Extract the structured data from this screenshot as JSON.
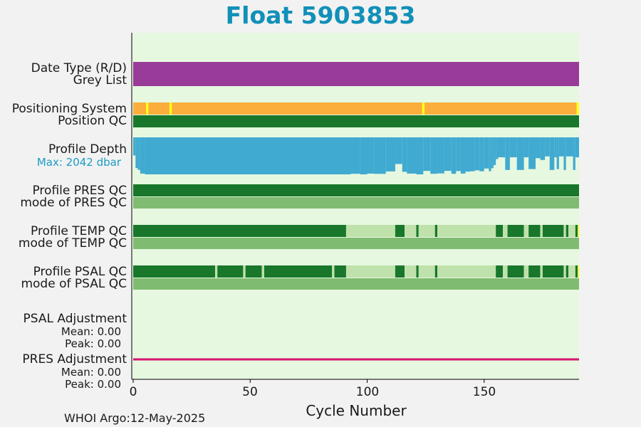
{
  "title": "Float 5903853",
  "footer": "WHOI Argo:12-May-2025",
  "colors": {
    "plot_bg": "#e6f8df",
    "purple": "#993b98",
    "orange": "#fbae3c",
    "yellow": "#ffff1a",
    "dark_green": "#18772a",
    "mid_green": "#7fbb70",
    "light_green": "#bfe1ac",
    "blue": "#40aad1",
    "magenta": "#d6156f"
  },
  "labels": {
    "date_type": "Date Type (R/D)",
    "grey_list": "Grey List",
    "positioning_system": "Positioning System",
    "position_qc": "Position QC",
    "profile_depth": "Profile Depth",
    "max_depth": "Max: 2042 dbar",
    "profile_pres_qc": "Profile PRES QC",
    "mode_pres_qc": "mode of PRES QC",
    "profile_temp_qc": "Profile TEMP QC",
    "mode_temp_qc": "mode of TEMP QC",
    "profile_psal_qc": "Profile PSAL QC",
    "mode_psal_qc": "mode of PSAL QC",
    "psal_adjustment": "PSAL Adjustment",
    "psal_mean": "Mean: 0.00",
    "psal_peak": "Peak: 0.00",
    "pres_adjustment": "PRES Adjustment",
    "pres_mean": "Mean: 0.00",
    "pres_peak": "Peak: 0.00"
  },
  "chart_data": {
    "type": "bar",
    "xlabel": "Cycle Number",
    "xlim": [
      -0.5,
      191
    ],
    "xticks": [
      0,
      50,
      100,
      150
    ],
    "tick_labels": [
      "0",
      "50",
      "100",
      "150"
    ],
    "rows": {
      "date_type": [
        {
          "from": 0,
          "to": 191,
          "color": "purple"
        }
      ],
      "positioning_system": [
        {
          "from": 0,
          "to": 191,
          "color": "orange"
        },
        {
          "from": 5.5,
          "to": 6.5,
          "color": "yellow"
        },
        {
          "from": 15.5,
          "to": 16.5,
          "color": "yellow"
        },
        {
          "from": 123.5,
          "to": 124.5,
          "color": "yellow"
        },
        {
          "from": 189.5,
          "to": 191,
          "color": "yellow"
        }
      ],
      "position_qc": [
        {
          "from": 0,
          "to": 191,
          "color": "dark_green"
        }
      ],
      "profile_pres_qc": [
        {
          "from": 0,
          "to": 191,
          "color": "dark_green"
        }
      ],
      "mode_pres_qc": [
        {
          "from": 0,
          "to": 191,
          "color": "mid_green"
        }
      ],
      "profile_temp_qc": [
        {
          "from": 0,
          "to": 91,
          "color": "dark_green"
        },
        {
          "from": 91,
          "to": 112,
          "color": "light_green"
        },
        {
          "from": 112,
          "to": 116,
          "color": "dark_green"
        },
        {
          "from": 116,
          "to": 121,
          "color": "light_green"
        },
        {
          "from": 121,
          "to": 122,
          "color": "dark_green"
        },
        {
          "from": 122,
          "to": 129,
          "color": "light_green"
        },
        {
          "from": 129,
          "to": 130,
          "color": "dark_green"
        },
        {
          "from": 130,
          "to": 155,
          "color": "light_green"
        },
        {
          "from": 155,
          "to": 158,
          "color": "dark_green"
        },
        {
          "from": 158,
          "to": 160,
          "color": "light_green"
        },
        {
          "from": 160,
          "to": 167,
          "color": "dark_green"
        },
        {
          "from": 167,
          "to": 169,
          "color": "light_green"
        },
        {
          "from": 169,
          "to": 174,
          "color": "dark_green"
        },
        {
          "from": 174,
          "to": 175,
          "color": "light_green"
        },
        {
          "from": 175,
          "to": 184,
          "color": "dark_green"
        },
        {
          "from": 184,
          "to": 185,
          "color": "light_green"
        },
        {
          "from": 185,
          "to": 186,
          "color": "dark_green"
        },
        {
          "from": 186,
          "to": 189,
          "color": "light_green"
        },
        {
          "from": 189,
          "to": 190,
          "color": "dark_green"
        },
        {
          "from": 190,
          "to": 191,
          "color": "yellow"
        }
      ],
      "mode_temp_qc": [
        {
          "from": 0,
          "to": 191,
          "color": "mid_green"
        }
      ],
      "profile_psal_qc": [
        {
          "from": 0,
          "to": 35,
          "color": "dark_green"
        },
        {
          "from": 35,
          "to": 36,
          "color": "light_green"
        },
        {
          "from": 36,
          "to": 47,
          "color": "dark_green"
        },
        {
          "from": 47,
          "to": 48,
          "color": "light_green"
        },
        {
          "from": 48,
          "to": 55,
          "color": "dark_green"
        },
        {
          "from": 55,
          "to": 56,
          "color": "light_green"
        },
        {
          "from": 56,
          "to": 85,
          "color": "dark_green"
        },
        {
          "from": 85,
          "to": 86,
          "color": "light_green"
        },
        {
          "from": 86,
          "to": 91,
          "color": "dark_green"
        },
        {
          "from": 91,
          "to": 112,
          "color": "light_green"
        },
        {
          "from": 112,
          "to": 116,
          "color": "dark_green"
        },
        {
          "from": 116,
          "to": 121,
          "color": "light_green"
        },
        {
          "from": 121,
          "to": 122,
          "color": "dark_green"
        },
        {
          "from": 122,
          "to": 129,
          "color": "light_green"
        },
        {
          "from": 129,
          "to": 130,
          "color": "dark_green"
        },
        {
          "from": 130,
          "to": 155,
          "color": "light_green"
        },
        {
          "from": 155,
          "to": 158,
          "color": "dark_green"
        },
        {
          "from": 158,
          "to": 160,
          "color": "light_green"
        },
        {
          "from": 160,
          "to": 167,
          "color": "dark_green"
        },
        {
          "from": 167,
          "to": 169,
          "color": "light_green"
        },
        {
          "from": 169,
          "to": 174,
          "color": "dark_green"
        },
        {
          "from": 174,
          "to": 175,
          "color": "light_green"
        },
        {
          "from": 175,
          "to": 184,
          "color": "dark_green"
        },
        {
          "from": 184,
          "to": 185,
          "color": "light_green"
        },
        {
          "from": 185,
          "to": 186,
          "color": "dark_green"
        },
        {
          "from": 186,
          "to": 189,
          "color": "light_green"
        },
        {
          "from": 189,
          "to": 190,
          "color": "dark_green"
        },
        {
          "from": 190,
          "to": 191,
          "color": "yellow"
        }
      ],
      "mode_psal_qc": [
        {
          "from": 0,
          "to": 191,
          "color": "mid_green"
        }
      ],
      "pres_adjustment": [
        {
          "from": 0,
          "to": 191,
          "color": "magenta"
        }
      ]
    },
    "profile_depth": {
      "max_dbar": 2042,
      "depth_steps_dbar": [
        {
          "from": 0,
          "to": 1,
          "dbar": 1000
        },
        {
          "from": 1,
          "to": 2,
          "dbar": 1700
        },
        {
          "from": 2,
          "to": 3,
          "dbar": 1800
        },
        {
          "from": 3,
          "to": 5,
          "dbar": 2000
        },
        {
          "from": 5,
          "to": 93,
          "dbar": 2042
        },
        {
          "from": 93,
          "to": 97,
          "dbar": 2010
        },
        {
          "from": 97,
          "to": 100,
          "dbar": 2042
        },
        {
          "from": 100,
          "to": 103,
          "dbar": 2000
        },
        {
          "from": 103,
          "to": 108,
          "dbar": 2015
        },
        {
          "from": 108,
          "to": 112,
          "dbar": 1880
        },
        {
          "from": 112,
          "to": 115,
          "dbar": 1470
        },
        {
          "from": 115,
          "to": 117,
          "dbar": 1900
        },
        {
          "from": 117,
          "to": 121,
          "dbar": 2000
        },
        {
          "from": 121,
          "to": 124,
          "dbar": 2042
        },
        {
          "from": 124,
          "to": 127,
          "dbar": 1850
        },
        {
          "from": 127,
          "to": 130,
          "dbar": 2010
        },
        {
          "from": 130,
          "to": 133,
          "dbar": 1990
        },
        {
          "from": 133,
          "to": 136,
          "dbar": 1850
        },
        {
          "from": 136,
          "to": 138,
          "dbar": 2010
        },
        {
          "from": 138,
          "to": 140,
          "dbar": 1860
        },
        {
          "from": 140,
          "to": 142,
          "dbar": 2000
        },
        {
          "from": 142,
          "to": 144,
          "dbar": 1890
        },
        {
          "from": 144,
          "to": 146,
          "dbar": 1870
        },
        {
          "from": 146,
          "to": 148,
          "dbar": 1820
        },
        {
          "from": 148,
          "to": 150,
          "dbar": 1870
        },
        {
          "from": 150,
          "to": 152,
          "dbar": 1720
        },
        {
          "from": 152,
          "to": 153,
          "dbar": 1870
        },
        {
          "from": 153,
          "to": 154,
          "dbar": 1700
        },
        {
          "from": 154,
          "to": 155,
          "dbar": 1530
        },
        {
          "from": 155,
          "to": 156,
          "dbar": 1200
        },
        {
          "from": 156,
          "to": 159,
          "dbar": 1100
        },
        {
          "from": 159,
          "to": 161,
          "dbar": 1800
        },
        {
          "from": 161,
          "to": 164,
          "dbar": 1100
        },
        {
          "from": 164,
          "to": 167,
          "dbar": 1800
        },
        {
          "from": 167,
          "to": 169,
          "dbar": 1100
        },
        {
          "from": 169,
          "to": 172,
          "dbar": 1750
        },
        {
          "from": 172,
          "to": 174,
          "dbar": 1150
        },
        {
          "from": 174,
          "to": 176,
          "dbar": 1250
        },
        {
          "from": 176,
          "to": 178,
          "dbar": 1050
        },
        {
          "from": 178,
          "to": 180,
          "dbar": 1800
        },
        {
          "from": 180,
          "to": 181,
          "dbar": 1100
        },
        {
          "from": 181,
          "to": 182,
          "dbar": 1750
        },
        {
          "from": 182,
          "to": 184,
          "dbar": 1050
        },
        {
          "from": 184,
          "to": 185,
          "dbar": 1800
        },
        {
          "from": 185,
          "to": 188,
          "dbar": 1050
        },
        {
          "from": 188,
          "to": 189,
          "dbar": 1800
        },
        {
          "from": 189,
          "to": 191,
          "dbar": 1100
        }
      ]
    }
  }
}
